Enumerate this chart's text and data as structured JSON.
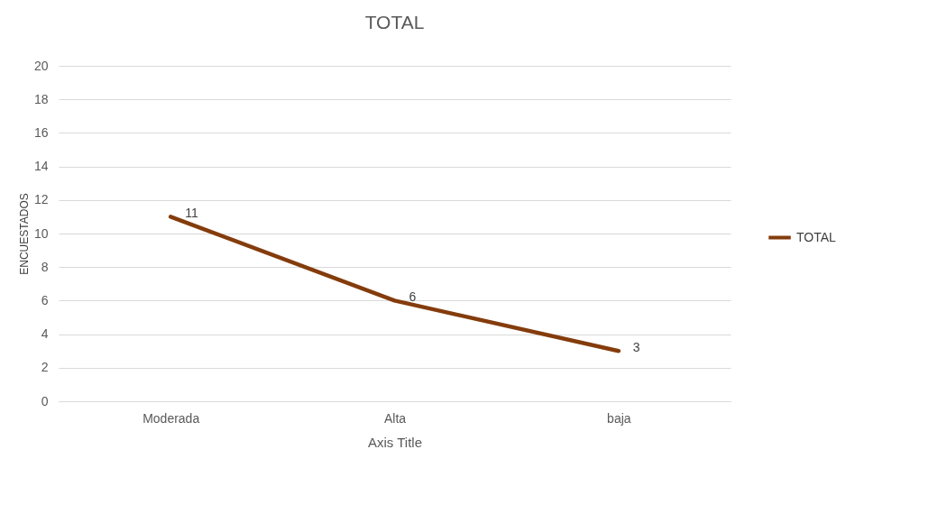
{
  "chart_data": {
    "type": "line",
    "title": "TOTAL",
    "xlabel": "Axis Title",
    "ylabel": "ENCUESTADOS",
    "categories": [
      "Moderada",
      "Alta",
      "baja"
    ],
    "series": [
      {
        "name": "TOTAL",
        "color": "#843c0c",
        "values": [
          11,
          6,
          3
        ]
      }
    ],
    "ylim": [
      0,
      20
    ],
    "yticks": [
      0,
      2,
      4,
      6,
      8,
      10,
      12,
      14,
      16,
      18,
      20
    ],
    "grid": "y",
    "legend": "right",
    "data_labels": true,
    "marker": "none",
    "line_style": "solid"
  }
}
